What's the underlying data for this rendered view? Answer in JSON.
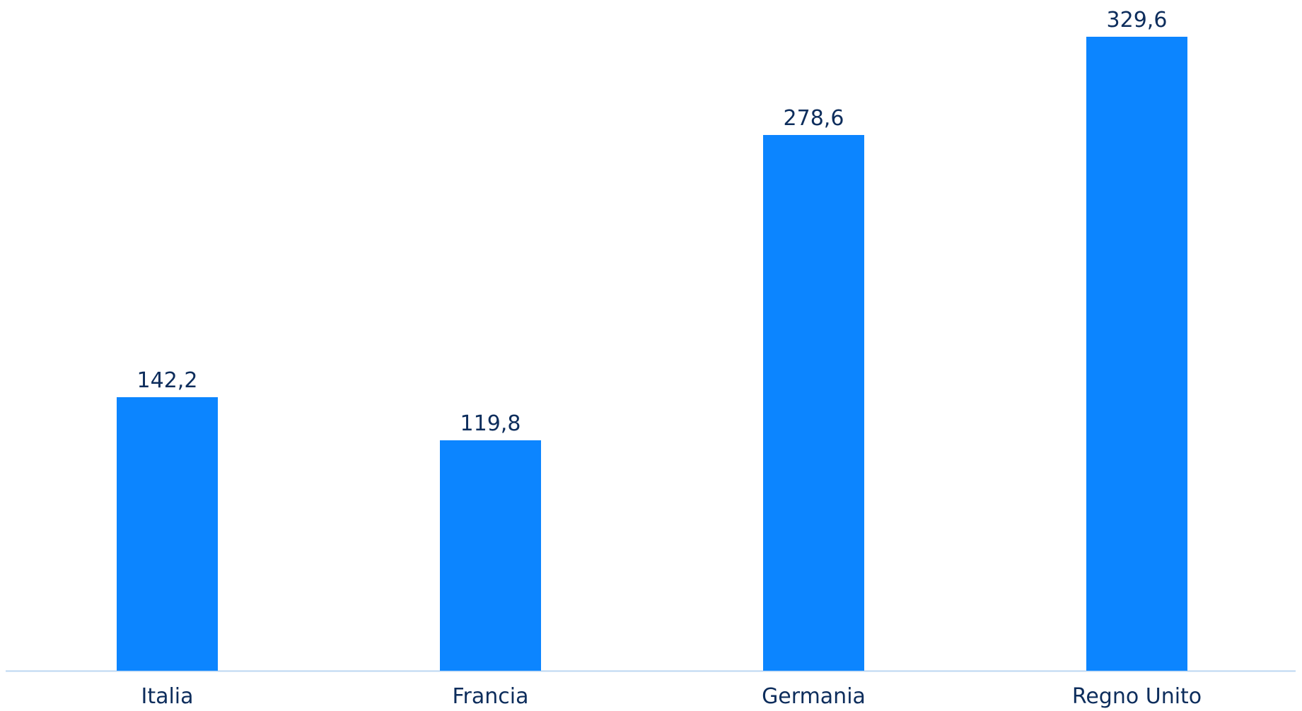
{
  "chart_data": {
    "type": "bar",
    "categories": [
      "Italia",
      "Francia",
      "Germania",
      "Regno Unito"
    ],
    "values": [
      142.2,
      119.8,
      278.6,
      329.6
    ],
    "value_labels": [
      "142,2",
      "119,8",
      "278,6",
      "329,6"
    ],
    "title": "",
    "xlabel": "",
    "ylabel": "",
    "ylim": [
      0,
      329.6
    ],
    "grid": false,
    "legend": "none"
  },
  "colors": {
    "bar": "#0c85ff",
    "value_label": "#0d2d5c",
    "category_label": "#0d2d5c",
    "baseline": "#bcd7f2"
  }
}
